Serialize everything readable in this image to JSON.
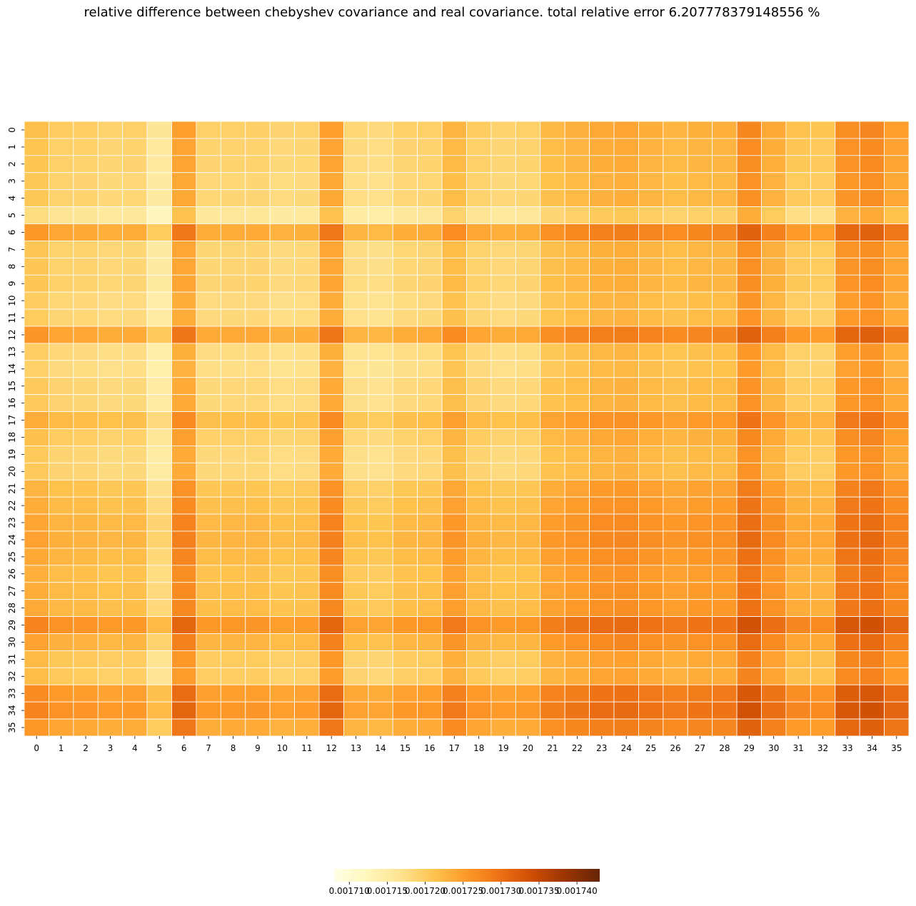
{
  "chart_data": {
    "type": "heatmap",
    "title": "relative difference between chebyshev covariance and real covariance. total relative error 6.207778379148556 %",
    "rows": [
      "0",
      "1",
      "2",
      "3",
      "4",
      "5",
      "6",
      "7",
      "8",
      "9",
      "10",
      "11",
      "12",
      "13",
      "14",
      "15",
      "16",
      "17",
      "18",
      "19",
      "20",
      "21",
      "22",
      "23",
      "24",
      "25",
      "26",
      "27",
      "28",
      "29",
      "30",
      "31",
      "32",
      "33",
      "34",
      "35"
    ],
    "columns": [
      "0",
      "1",
      "2",
      "3",
      "4",
      "5",
      "6",
      "7",
      "8",
      "9",
      "10",
      "11",
      "12",
      "13",
      "14",
      "15",
      "16",
      "17",
      "18",
      "19",
      "20",
      "21",
      "22",
      "23",
      "24",
      "25",
      "26",
      "27",
      "28",
      "29",
      "30",
      "31",
      "32",
      "33",
      "34",
      "35"
    ],
    "value_model": "outer_sum",
    "row_component": [
      0.0017215,
      0.001721,
      0.0017209,
      0.0017205,
      0.0017206,
      0.0017178,
      0.0017256,
      0.0017207,
      0.0017207,
      0.0017208,
      0.00172,
      0.0017202,
      0.0017258,
      0.0017198,
      0.0017195,
      0.0017203,
      0.0017203,
      0.0017236,
      0.0017214,
      0.0017203,
      0.0017203,
      0.0017228,
      0.0017235,
      0.0017243,
      0.0017247,
      0.001724,
      0.0017233,
      0.0017236,
      0.0017238,
      0.0017277,
      0.0017246,
      0.0017221,
      0.0017218,
      0.0017269,
      0.0017277,
      0.0017257
    ],
    "column_component": [
      0.0,
      -1.5e-06,
      -1.7e-06,
      -2.3e-06,
      -2.1e-06,
      -5.5e-06,
      3.4e-06,
      -2.1e-06,
      -2e-06,
      -1.9e-06,
      -2.7e-06,
      -2.4e-06,
      3.4e-06,
      -3e-06,
      -3.4e-06,
      -2.2e-06,
      -2e-06,
      1.2e-06,
      -1.5e-06,
      -2.3e-06,
      -2e-06,
      8e-07,
      1.6e-06,
      2.5e-06,
      2.8e-06,
      1.9e-06,
      1.2e-06,
      1.7e-06,
      1.8e-06,
      5.8e-06,
      2.4e-06,
      -3e-07,
      -6e-07,
      5.2e-06,
      6e-06,
      3.5e-06
    ],
    "color_scale": {
      "name": "YlOrBr",
      "vmin": 0.001708,
      "vmax": 0.001743,
      "colors": [
        "#ffffe5",
        "#fff7bc",
        "#fee391",
        "#fec44f",
        "#fe9929",
        "#ec7014",
        "#cc4c02",
        "#993404",
        "#662506"
      ]
    },
    "grid_lines": true,
    "cell_border_color": "#ffffff",
    "colorbar": {
      "orientation": "horizontal",
      "placement": "bottom",
      "ticks": [
        0.00171,
        0.001715,
        0.00172,
        0.001725,
        0.00173,
        0.001735,
        0.00174
      ],
      "tick_labels": [
        "0.001710",
        "0.001715",
        "0.001720",
        "0.001725",
        "0.001730",
        "0.001735",
        "0.001740"
      ]
    }
  }
}
